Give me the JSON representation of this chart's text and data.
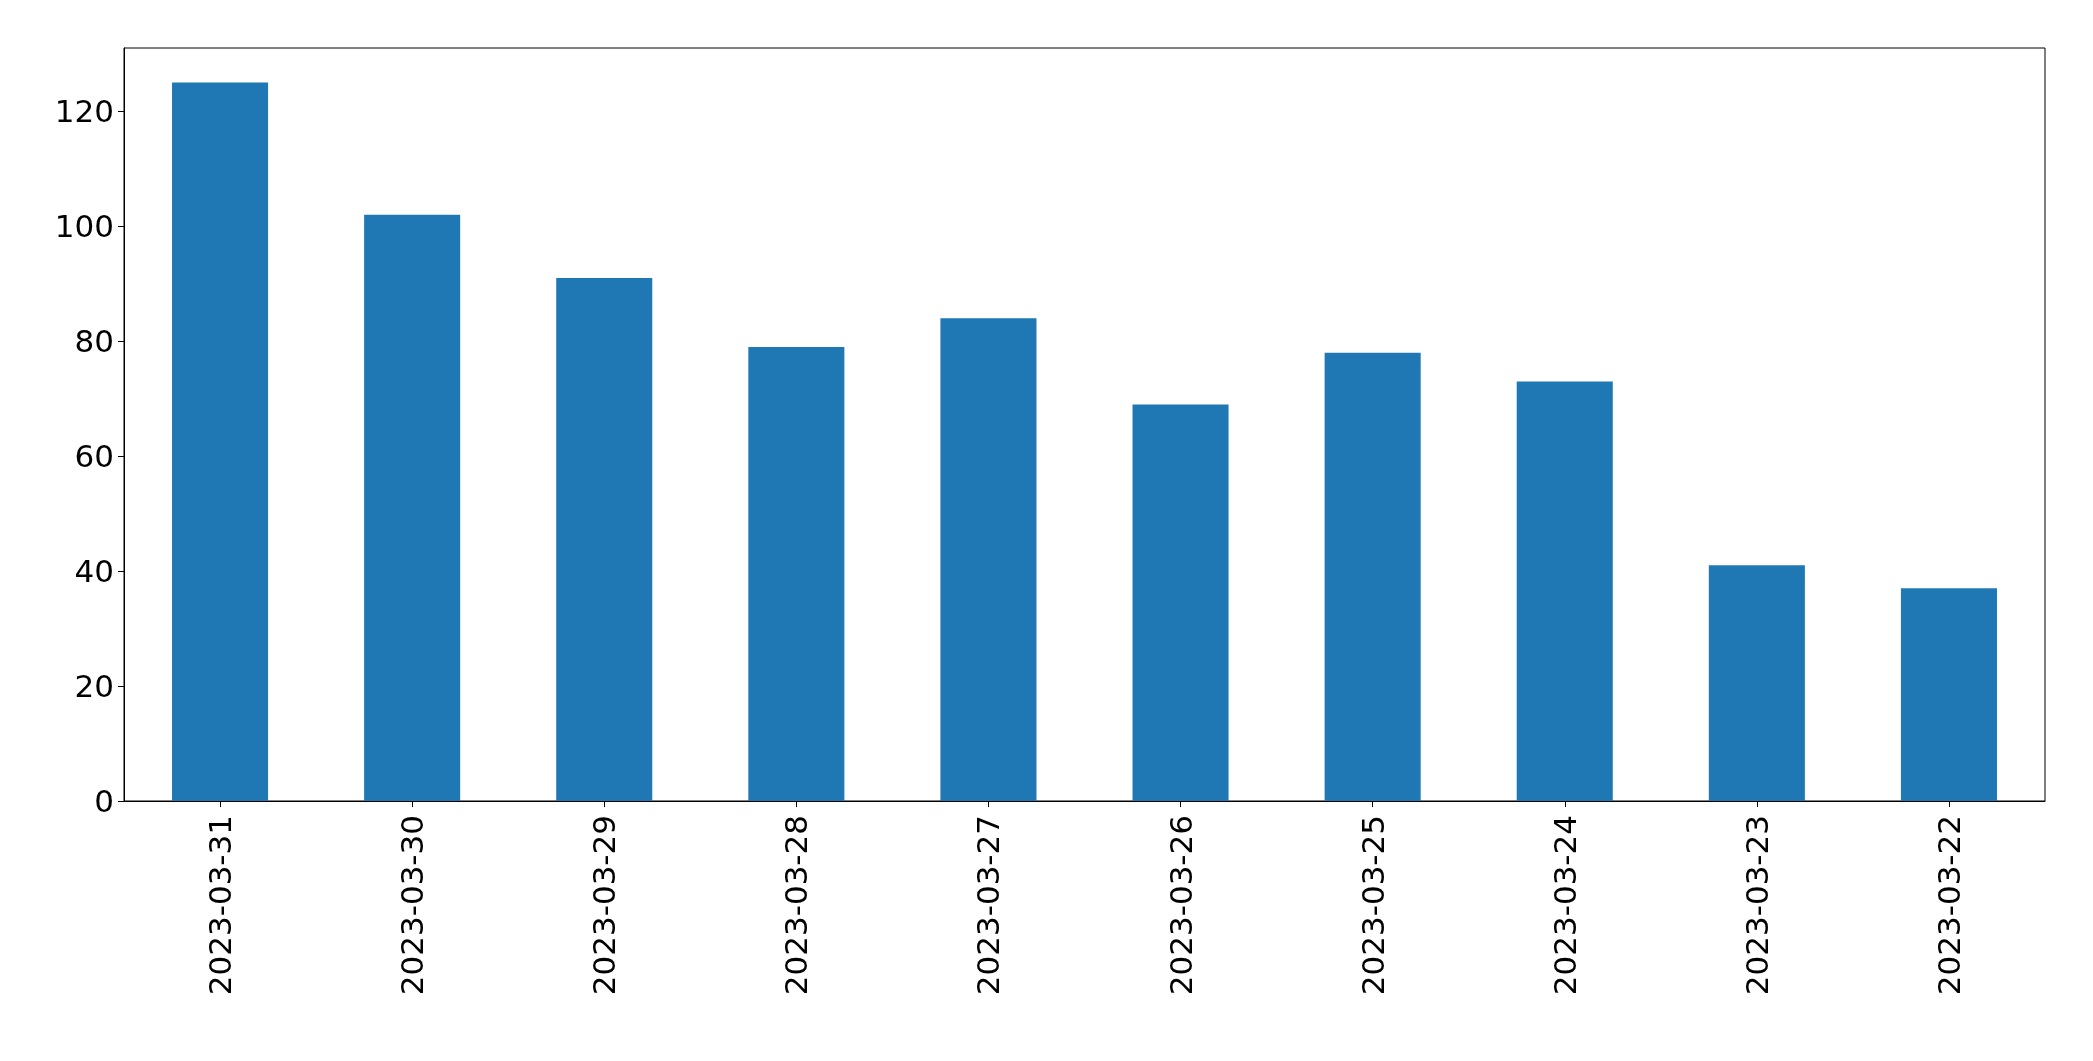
{
  "chart_data": {
    "type": "bar",
    "categories": [
      "2023-03-31",
      "2023-03-30",
      "2023-03-29",
      "2023-03-28",
      "2023-03-27",
      "2023-03-26",
      "2023-03-25",
      "2023-03-24",
      "2023-03-23",
      "2023-03-22"
    ],
    "values": [
      125,
      102,
      91,
      79,
      84,
      69,
      78,
      73,
      41,
      37
    ],
    "color": "#1f77b4",
    "ylim": [
      0,
      131
    ],
    "yticks": [
      0,
      20,
      40,
      60,
      80,
      100,
      120
    ],
    "grid": false
  }
}
